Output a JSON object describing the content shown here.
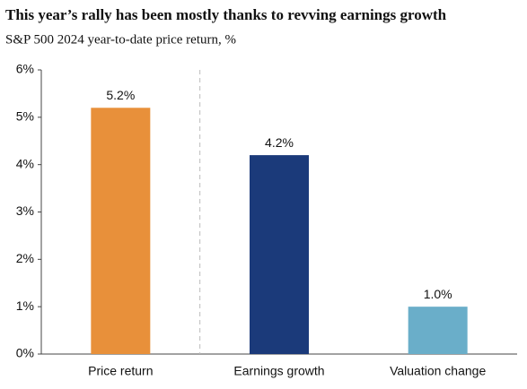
{
  "chart_data": {
    "type": "bar",
    "title": "This year’s rally has been mostly thanks to revving earnings growth",
    "subtitle": "S&P 500 2024 year-to-date price return, %",
    "categories": [
      "Price return",
      "Earnings growth",
      "Valuation change"
    ],
    "values": [
      5.2,
      4.2,
      1.0
    ],
    "value_labels": [
      "5.2%",
      "4.2%",
      "1.0%"
    ],
    "colors": [
      "#e8903a",
      "#1b3a7a",
      "#6aaec9"
    ],
    "ylim": [
      0,
      6
    ],
    "yticks": [
      {
        "value": 0,
        "label": "0%"
      },
      {
        "value": 1,
        "label": "1%"
      },
      {
        "value": 2,
        "label": "2%"
      },
      {
        "value": 3,
        "label": "3%"
      },
      {
        "value": 4,
        "label": "4%"
      },
      {
        "value": 5,
        "label": "5%"
      },
      {
        "value": 6,
        "label": "6%"
      }
    ],
    "grid": false
  }
}
